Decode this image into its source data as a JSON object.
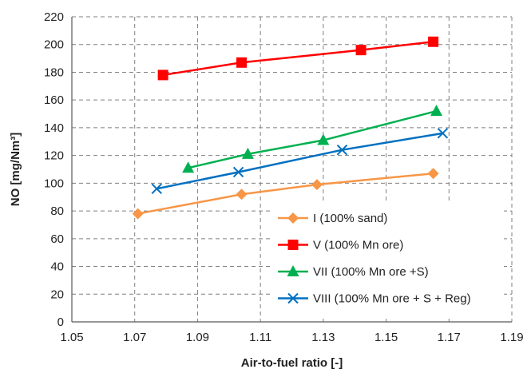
{
  "chart_data": {
    "type": "line",
    "title": "",
    "xlabel": "Air-to-fuel ratio [-]",
    "ylabel": "NO [mg/Nm³]",
    "xlim": [
      1.05,
      1.19
    ],
    "ylim": [
      0,
      220
    ],
    "x_ticks": [
      "1.05",
      "1.07",
      "1.09",
      "1.11",
      "1.13",
      "1.15",
      "1.17",
      "1.19"
    ],
    "y_ticks": [
      "0",
      "20",
      "40",
      "60",
      "80",
      "100",
      "120",
      "140",
      "160",
      "180",
      "200",
      "220"
    ],
    "grid": true,
    "legend_position": "bottom-right",
    "series": [
      {
        "name": "I (100% sand)",
        "color": "#F79646",
        "marker": "diamond",
        "x": [
          1.071,
          1.104,
          1.128,
          1.165
        ],
        "y": [
          78,
          92,
          99,
          107
        ]
      },
      {
        "name": "V (100% Mn ore)",
        "color": "#FF0000",
        "marker": "square",
        "x": [
          1.079,
          1.104,
          1.142,
          1.165
        ],
        "y": [
          178,
          187,
          196,
          202
        ]
      },
      {
        "name": "VII (100% Mn ore +S)",
        "color": "#00B050",
        "marker": "triangle",
        "x": [
          1.087,
          1.106,
          1.13,
          1.166
        ],
        "y": [
          111,
          121,
          131,
          152
        ]
      },
      {
        "name": "VIII (100% Mn ore + S + Reg)",
        "color": "#0070C0",
        "marker": "x",
        "x": [
          1.077,
          1.103,
          1.136,
          1.168
        ],
        "y": [
          96,
          108,
          124,
          136
        ]
      }
    ]
  }
}
